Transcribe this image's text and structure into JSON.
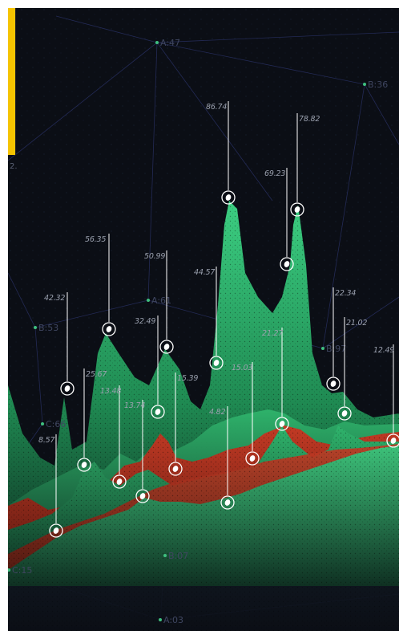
{
  "accent_color": "#f5c400",
  "background_color": "#0b0e15",
  "side_mark": "2.",
  "network_nodes": [
    "A:47",
    "B:36",
    "B:53",
    "A:61",
    "B:97",
    "C:66",
    "B:07",
    "C:15",
    "A:03"
  ],
  "chart_data": {
    "type": "area",
    "title": "",
    "xlabel": "",
    "ylabel": "",
    "colors": {
      "green": "#2fb46c",
      "red": "#c0311f",
      "marker": "#ffffff"
    },
    "data_labels": [
      {
        "value": 8.57
      },
      {
        "value": 42.32
      },
      {
        "value": 25.67
      },
      {
        "value": 56.35
      },
      {
        "value": 13.48
      },
      {
        "value": 13.74
      },
      {
        "value": 32.49
      },
      {
        "value": 50.99
      },
      {
        "value": 15.39
      },
      {
        "value": 44.57
      },
      {
        "value": 86.74
      },
      {
        "value": 4.82
      },
      {
        "value": 15.03
      },
      {
        "value": 69.23
      },
      {
        "value": 21.27
      },
      {
        "value": 78.82
      },
      {
        "value": 22.34
      },
      {
        "value": 21.02
      },
      {
        "value": 12.49
      }
    ]
  }
}
